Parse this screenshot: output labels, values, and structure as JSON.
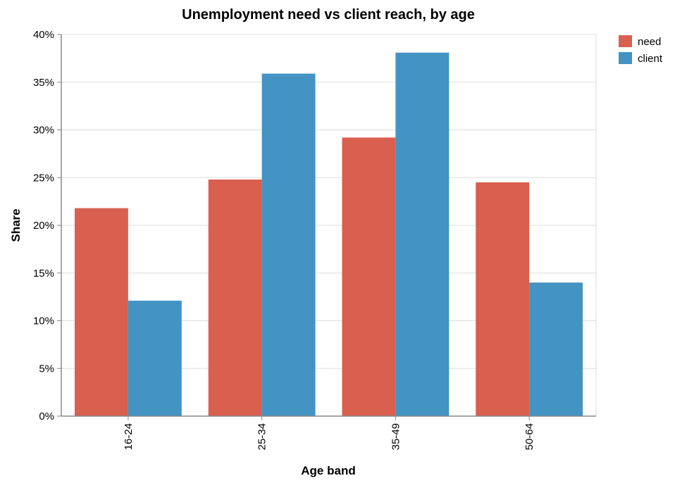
{
  "chart_data": {
    "type": "bar",
    "title": "Unemployment need vs client reach, by age",
    "xlabel": "Age band",
    "ylabel": "Share",
    "categories": [
      "16-24",
      "25-34",
      "35-49",
      "50-64"
    ],
    "series": [
      {
        "name": "need",
        "values": [
          0.218,
          0.248,
          0.292,
          0.245
        ],
        "color": "#d95f4e"
      },
      {
        "name": "client",
        "values": [
          0.121,
          0.359,
          0.381,
          0.14
        ],
        "color": "#4393c3"
      }
    ],
    "ylim": [
      0,
      0.4
    ],
    "yticks": [
      0,
      0.05,
      0.1,
      0.15,
      0.2,
      0.25,
      0.3,
      0.35,
      0.4
    ],
    "ytick_labels": [
      "0%",
      "5%",
      "10%",
      "15%",
      "20%",
      "25%",
      "30%",
      "35%",
      "40%"
    ],
    "grid": true,
    "legend_position": "top-right"
  }
}
